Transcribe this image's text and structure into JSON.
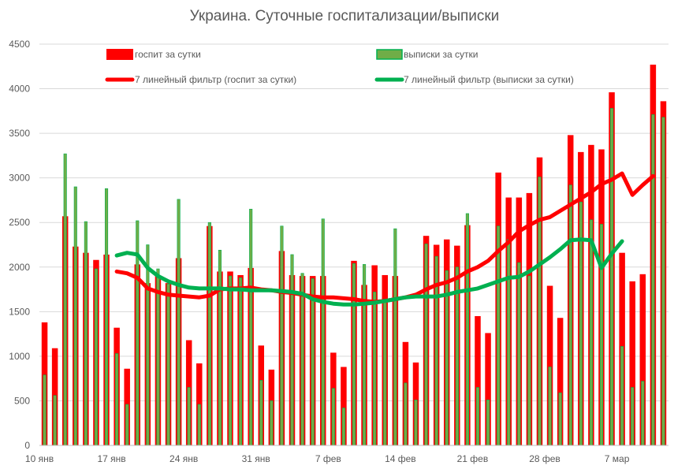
{
  "chart_data": {
    "type": "bar",
    "title": "Украина. Суточные госпитализации/выписки",
    "xlabel": "",
    "ylabel": "",
    "ylim": [
      0,
      4500
    ],
    "yticks": [
      0,
      500,
      1000,
      1500,
      2000,
      2500,
      3000,
      3500,
      4000,
      4500
    ],
    "grid": true,
    "legend_position": "top",
    "colors": {
      "hosp": "#ff0000",
      "disch_fill": "#70ad47",
      "disch_edge": "#00b050",
      "hosp_line": "#ff0000",
      "disch_line": "#00b050",
      "grid": "#d9d9d9",
      "axis_text": "#595959"
    },
    "x_tick_labels": [
      {
        "index": 0,
        "label": "10 янв"
      },
      {
        "index": 7,
        "label": "17 янв"
      },
      {
        "index": 14,
        "label": "24 янв"
      },
      {
        "index": 21,
        "label": "31 янв"
      },
      {
        "index": 28,
        "label": "7 фев"
      },
      {
        "index": 35,
        "label": "14 фев"
      },
      {
        "index": 42,
        "label": "21 фев"
      },
      {
        "index": 49,
        "label": "28 фев"
      },
      {
        "index": 56,
        "label": "7 мар"
      }
    ],
    "series": [
      {
        "name": "госпит за сутки",
        "kind": "bar",
        "values": [
          1380,
          1090,
          2570,
          2230,
          2160,
          2080,
          2140,
          1320,
          860,
          2030,
          1820,
          1900,
          1820,
          2100,
          1180,
          920,
          2460,
          1950,
          1950,
          1910,
          1990,
          1120,
          850,
          2180,
          1910,
          1900,
          1900,
          1900,
          1040,
          880,
          2070,
          1800,
          2020,
          1910,
          1900,
          1160,
          930,
          2350,
          2250,
          2310,
          2240,
          2470,
          1450,
          1260,
          3060,
          2780,
          2780,
          2830,
          3230,
          1790,
          1430,
          3480,
          3290,
          3370,
          3320,
          3960,
          2160,
          1840,
          1920,
          4270,
          3860
        ]
      },
      {
        "name": "выписки за сутки",
        "kind": "bar",
        "values": [
          790,
          560,
          3270,
          2900,
          2510,
          1980,
          2880,
          1030,
          460,
          2520,
          2250,
          1980,
          1810,
          2760,
          650,
          460,
          2500,
          2190,
          1900,
          1880,
          2650,
          730,
          500,
          2460,
          2140,
          1930,
          1870,
          2540,
          640,
          420,
          2040,
          2030,
          1720,
          1640,
          2430,
          700,
          510,
          2260,
          2120,
          1960,
          2000,
          2600,
          650,
          510,
          2460,
          2310,
          2050,
          1900,
          3010,
          880,
          590,
          2920,
          2730,
          2530,
          2480,
          3780,
          1110,
          650,
          720,
          3710,
          3680
        ]
      },
      {
        "name": "7 линейный фильтр (госпит за сутки)",
        "kind": "line",
        "start_index": 7,
        "values": [
          1950,
          1930,
          1880,
          1760,
          1720,
          1690,
          1680,
          1670,
          1660,
          1680,
          1750,
          1760,
          1760,
          1770,
          1750,
          1740,
          1720,
          1710,
          1690,
          1670,
          1660,
          1660,
          1650,
          1640,
          1620,
          1610,
          1620,
          1640,
          1660,
          1690,
          1750,
          1800,
          1830,
          1880,
          1950,
          2000,
          2070,
          2180,
          2280,
          2400,
          2470,
          2530,
          2560,
          2630,
          2700,
          2770,
          2840,
          2930,
          2980,
          3050,
          2810,
          2920,
          3020
        ]
      },
      {
        "name": "7 линейный фильтр (выписки за сутки)",
        "kind": "line",
        "start_index": 7,
        "values": [
          2130,
          2160,
          2140,
          1990,
          1900,
          1840,
          1800,
          1770,
          1760,
          1760,
          1760,
          1750,
          1750,
          1740,
          1740,
          1740,
          1730,
          1720,
          1700,
          1640,
          1610,
          1590,
          1580,
          1580,
          1590,
          1600,
          1620,
          1640,
          1660,
          1670,
          1670,
          1670,
          1690,
          1720,
          1740,
          1760,
          1800,
          1840,
          1880,
          1890,
          1950,
          2030,
          2110,
          2200,
          2300,
          2310,
          2300,
          1990,
          2150,
          2290
        ]
      }
    ]
  }
}
